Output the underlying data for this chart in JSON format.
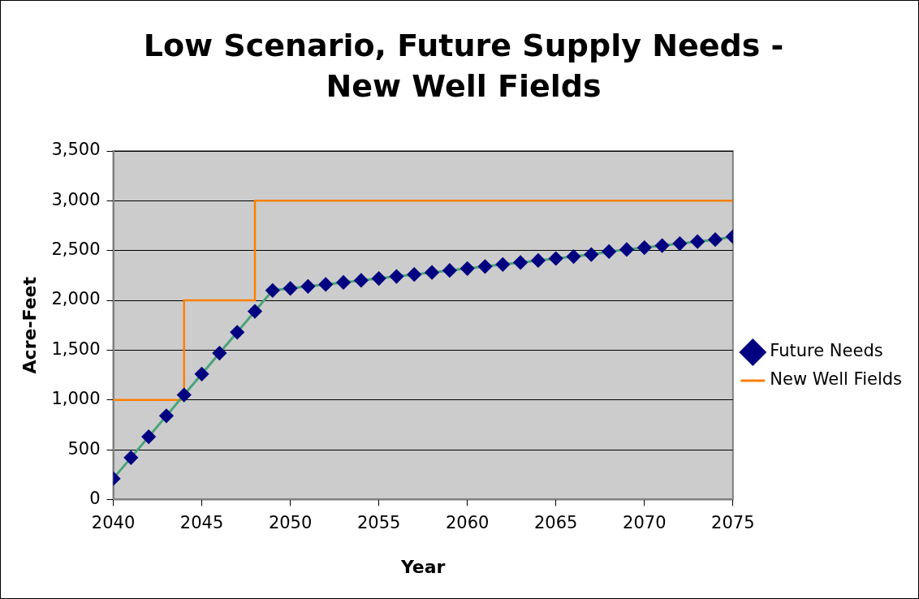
{
  "chart_data": {
    "type": "line",
    "title": "Low Scenario, Future Supply Needs - New Well Fields",
    "xlabel": "Year",
    "ylabel": "Acre-Feet",
    "xlim": [
      2040,
      2075
    ],
    "xticks": [
      2040,
      2045,
      2050,
      2055,
      2060,
      2065,
      2070,
      2075
    ],
    "ylim": [
      0,
      3500
    ],
    "yticks": [
      0,
      500,
      {
        "value": 1000,
        "label": "1,000"
      },
      {
        "value": 1500,
        "label": "1,500"
      },
      {
        "value": 2000,
        "label": "2,000"
      },
      {
        "value": 2500,
        "label": "2,500"
      },
      {
        "value": 3000,
        "label": "3,000"
      },
      {
        "value": 3500,
        "label": "3,500"
      }
    ],
    "grid": "y",
    "legend": "right",
    "series": [
      {
        "name": "Future Needs",
        "type": "line",
        "color": "#000080",
        "marker": "diamond",
        "x": [
          2040,
          2041,
          2042,
          2043,
          2044,
          2045,
          2046,
          2047,
          2048,
          2049,
          2050,
          2051,
          2052,
          2053,
          2054,
          2055,
          2056,
          2057,
          2058,
          2059,
          2060,
          2061,
          2062,
          2063,
          2064,
          2065,
          2066,
          2067,
          2068,
          2069,
          2070,
          2071,
          2072,
          2073,
          2074,
          2075
        ],
        "values": [
          210,
          420,
          630,
          840,
          1050,
          1260,
          1470,
          1680,
          1890,
          2100,
          2120,
          2140,
          2160,
          2180,
          2200,
          2220,
          2240,
          2260,
          2280,
          2300,
          2320,
          2340,
          2360,
          2380,
          2400,
          2420,
          2440,
          2460,
          2490,
          2510,
          2530,
          2550,
          2570,
          2590,
          2610,
          2640
        ]
      },
      {
        "name": "New Well Fields",
        "type": "step",
        "color": "#ff8000",
        "marker": "none",
        "x": [
          2040,
          2044,
          2048,
          2075
        ],
        "values": [
          1000,
          2000,
          3000,
          3000
        ]
      }
    ]
  }
}
